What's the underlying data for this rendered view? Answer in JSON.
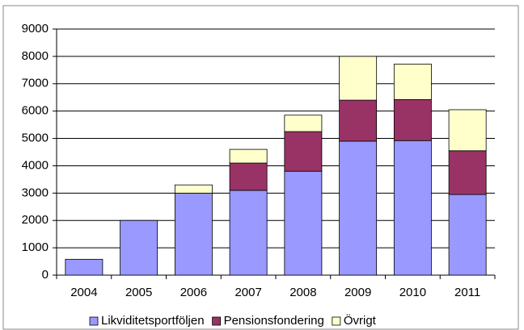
{
  "chart_data": {
    "type": "stacked_bar",
    "categories": [
      "2004",
      "2005",
      "2006",
      "2007",
      "2008",
      "2009",
      "2010",
      "2011"
    ],
    "series": [
      {
        "name": "Likviditetsportföljen",
        "color": "#9999ff",
        "values": [
          580,
          2000,
          3000,
          3100,
          3800,
          4900,
          4920,
          2950
        ]
      },
      {
        "name": "Pensionsfondering",
        "color": "#993366",
        "values": [
          0,
          0,
          0,
          1000,
          1450,
          1500,
          1500,
          1600
        ]
      },
      {
        "name": "Övrigt",
        "color": "#ffffcc",
        "values": [
          0,
          0,
          300,
          500,
          600,
          1600,
          1300,
          1500
        ]
      }
    ],
    "ylim": [
      0,
      9000
    ],
    "yticks": [
      0,
      1000,
      2000,
      3000,
      4000,
      5000,
      6000,
      7000,
      8000,
      9000
    ],
    "grid": true,
    "legend": "bottom"
  }
}
